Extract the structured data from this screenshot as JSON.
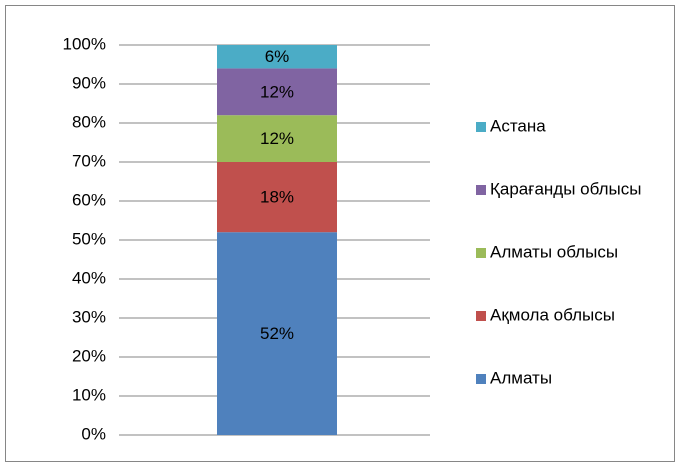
{
  "chart_data": {
    "type": "stacked_bar_100",
    "categories": [
      null
    ],
    "series": [
      {
        "name": "Алматы",
        "color": "#4f81bd",
        "values": [
          52
        ],
        "value_labels": [
          "52%"
        ]
      },
      {
        "name": "Ақмола облысы",
        "color": "#c0504d",
        "values": [
          18
        ],
        "value_labels": [
          "18%"
        ]
      },
      {
        "name": "Алматы облысы",
        "color": "#9bbb59",
        "values": [
          12
        ],
        "value_labels": [
          "12%"
        ]
      },
      {
        "name": "Қарағанды облысы",
        "color": "#8064a2",
        "values": [
          12
        ],
        "value_labels": [
          "12%"
        ]
      },
      {
        "name": "Астана",
        "color": "#4bacc6",
        "values": [
          6
        ],
        "value_labels": [
          "6%"
        ]
      }
    ],
    "ylim": [
      0,
      100
    ],
    "yticks": [
      {
        "value": 0,
        "label": "0%"
      },
      {
        "value": 10,
        "label": "10%"
      },
      {
        "value": 20,
        "label": "20%"
      },
      {
        "value": 30,
        "label": "30%"
      },
      {
        "value": 40,
        "label": "40%"
      },
      {
        "value": 50,
        "label": "50%"
      },
      {
        "value": 60,
        "label": "60%"
      },
      {
        "value": 70,
        "label": "70%"
      },
      {
        "value": 80,
        "label": "80%"
      },
      {
        "value": 90,
        "label": "90%"
      },
      {
        "value": 100,
        "label": "100%"
      }
    ],
    "grid": true,
    "legend": "right"
  }
}
